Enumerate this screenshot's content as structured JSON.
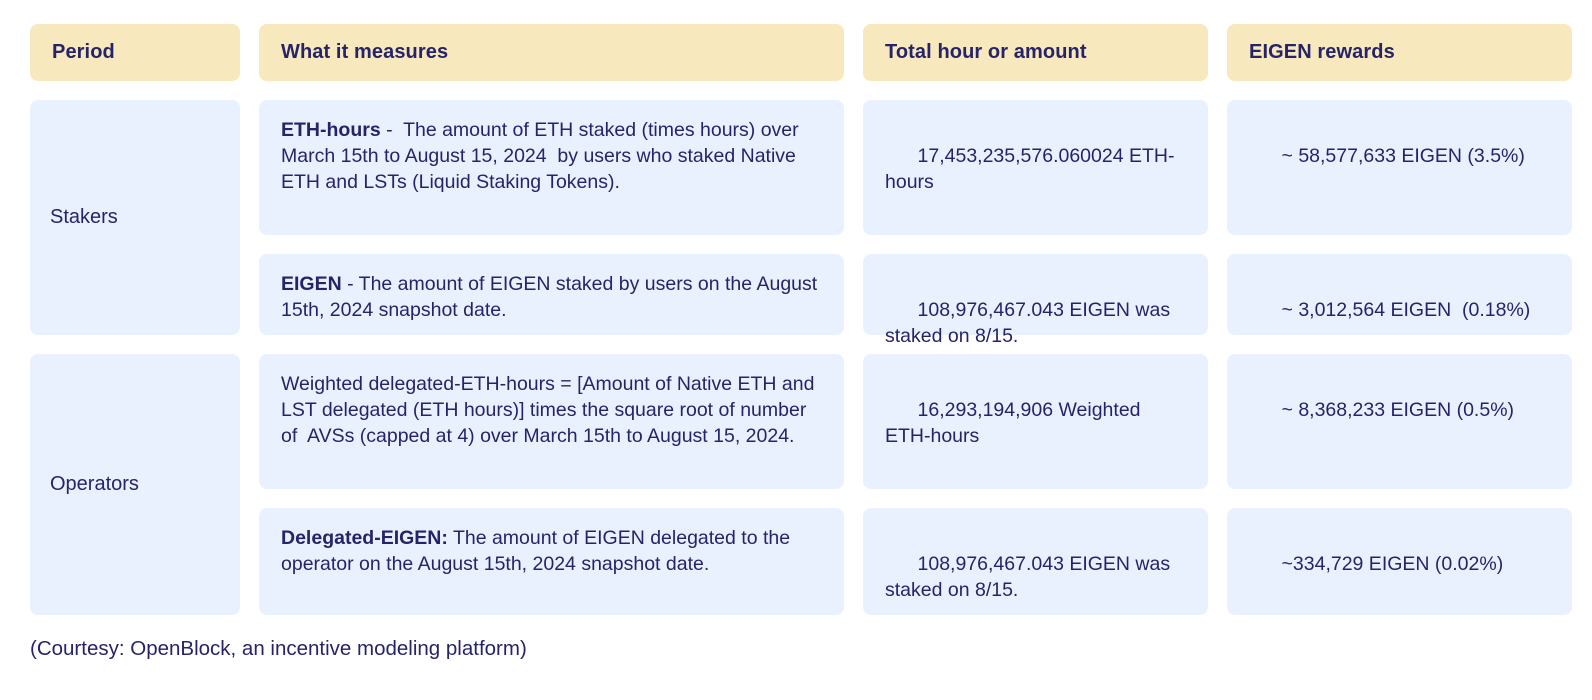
{
  "colors": {
    "header_bg": "#f8e8bd",
    "cell_bg": "#e8f1fd",
    "text": "#262469",
    "page_bg": "#ffffff"
  },
  "table": {
    "headers": {
      "period": "Period",
      "measures": "What it measures",
      "total": "Total hour or amount",
      "rewards": "EIGEN rewards"
    },
    "groups": {
      "stakers": {
        "period": "Stakers",
        "rows": {
          "eth_hours": {
            "measure_bold": "ETH-hours",
            "measure_rest": " -  The amount of ETH staked (times hours) over March 15th to August 15, 2024  by users who staked Native ETH and LSTs (Liquid Staking Tokens).",
            "total": "17,453,235,576.060024 ETH-hours",
            "reward": "~ 58,577,633 EIGEN (3.5%)"
          },
          "eigen": {
            "measure_bold": "EIGEN",
            "measure_rest": " - The amount of EIGEN staked by users on the August 15th, 2024 snapshot date.",
            "total": "108,976,467.043 EIGEN was staked on 8/15.",
            "reward": "~ 3,012,564 EIGEN  (0.18%)"
          }
        }
      },
      "operators": {
        "period": "Operators",
        "rows": {
          "weighted": {
            "measure_bold": "",
            "measure_rest": "Weighted delegated-ETH-hours = [Amount of Native ETH and LST delegated (ETH hours)] times the square root of number of  AVSs (capped at 4) over March 15th to August 15, 2024.",
            "total": "16,293,194,906 Weighted ETH-hours",
            "reward": "~ 8,368,233 EIGEN (0.5%)"
          },
          "delegated_eigen": {
            "measure_bold": "Delegated-EIGEN:",
            "measure_rest": " The amount of EIGEN delegated to the operator on the August 15th, 2024 snapshot date.",
            "total": "108,976,467.043 EIGEN was staked on 8/15.",
            "reward": "~334,729 EIGEN (0.02%)"
          }
        }
      }
    }
  },
  "caption": "(Courtesy: OpenBlock, an incentive modeling platform)",
  "chart_data": {
    "type": "table",
    "title": "EIGEN stakedrop rewards by period",
    "columns": [
      "Period",
      "What it measures",
      "Total hour or amount",
      "EIGEN rewards"
    ],
    "rows": [
      [
        "Stakers",
        "ETH-hours -  The amount of ETH staked (times hours) over March 15th to August 15, 2024  by users who staked Native ETH and LSTs (Liquid Staking Tokens).",
        "17,453,235,576.060024 ETH-hours",
        "~ 58,577,633 EIGEN (3.5%)"
      ],
      [
        "Stakers",
        "EIGEN - The amount of EIGEN staked by users on the August 15th, 2024 snapshot date.",
        "108,976,467.043 EIGEN was staked on 8/15.",
        "~ 3,012,564 EIGEN  (0.18%)"
      ],
      [
        "Operators",
        "Weighted delegated-ETH-hours = [Amount of Native ETH and LST delegated (ETH hours)] times the square root of number of  AVSs (capped at 4) over March 15th to August 15, 2024.",
        "16,293,194,906 Weighted ETH-hours",
        "~ 8,368,233 EIGEN (0.5%)"
      ],
      [
        "Operators",
        "Delegated-EIGEN: The amount of EIGEN delegated to the operator on the August 15th, 2024 snapshot date.",
        "108,976,467.043 EIGEN was staked on 8/15.",
        "~334,729 EIGEN (0.02%)"
      ]
    ],
    "notes": "Caption: (Courtesy: OpenBlock, an incentive modeling platform)"
  }
}
